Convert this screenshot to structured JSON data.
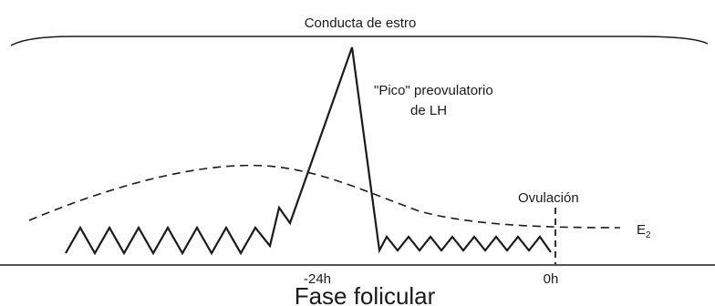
{
  "title": "Conducta de estro",
  "lh_label_line1": "\"Pico\" preovulatorio",
  "lh_label_line2": "de LH",
  "ovulation_label": "Ovulación",
  "e2_label": "E",
  "e2_subscript": "2",
  "x_ticks": [
    "-24h",
    "0h"
  ],
  "xlabel": "Fase folicular",
  "colors": {
    "ink": "#1a1a1a",
    "background": "#ffffff"
  }
}
